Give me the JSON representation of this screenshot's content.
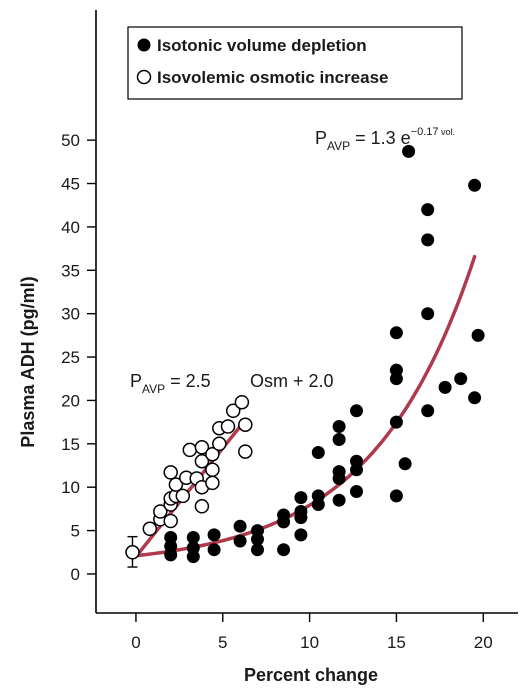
{
  "chart_data": {
    "type": "scatter",
    "title": "",
    "xlabel": "Percent change",
    "ylabel": "Plasma ADH (pg/ml)",
    "xlim": [
      -2.3,
      22
    ],
    "ylim": [
      -4.5,
      65
    ],
    "xticks": [
      0,
      5,
      10,
      15,
      20
    ],
    "yticks": [
      0,
      5,
      10,
      15,
      20,
      25,
      30,
      35,
      40,
      45,
      50
    ],
    "grid": false,
    "legend_position": "top-left",
    "series": [
      {
        "name": "Isotonic volume depletion",
        "marker": "filled-circle",
        "color": "#000000",
        "points": [
          [
            2,
            2.2
          ],
          [
            2,
            3.2
          ],
          [
            2,
            4.2
          ],
          [
            3.3,
            2.0
          ],
          [
            3.3,
            3.0
          ],
          [
            3.3,
            4.2
          ],
          [
            4.5,
            2.8
          ],
          [
            4.5,
            4.5
          ],
          [
            6,
            3.8
          ],
          [
            6,
            5.5
          ],
          [
            7,
            2.8
          ],
          [
            7,
            4.0
          ],
          [
            7,
            5.0
          ],
          [
            8.5,
            2.8
          ],
          [
            8.5,
            6.0
          ],
          [
            8.5,
            6.8
          ],
          [
            9.5,
            4.5
          ],
          [
            9.5,
            6.5
          ],
          [
            9.5,
            7.2
          ],
          [
            9.5,
            8.8
          ],
          [
            10.5,
            8.0
          ],
          [
            10.5,
            9.0
          ],
          [
            10.5,
            14.0
          ],
          [
            11.7,
            8.5
          ],
          [
            11.7,
            11.0
          ],
          [
            11.7,
            11.8
          ],
          [
            11.7,
            15.5
          ],
          [
            11.7,
            17.0
          ],
          [
            12.7,
            9.5
          ],
          [
            12.7,
            12.0
          ],
          [
            12.7,
            13.0
          ],
          [
            12.7,
            18.8
          ],
          [
            15,
            9.0
          ],
          [
            15,
            17.5
          ],
          [
            15,
            22.5
          ],
          [
            15,
            23.5
          ],
          [
            15,
            27.8
          ],
          [
            15.5,
            12.7
          ],
          [
            15.7,
            48.7
          ],
          [
            16.8,
            18.8
          ],
          [
            16.8,
            30.0
          ],
          [
            16.8,
            38.5
          ],
          [
            16.8,
            42.0
          ],
          [
            17.8,
            21.5
          ],
          [
            18.7,
            22.5
          ],
          [
            19.5,
            20.3
          ],
          [
            19.5,
            44.8
          ],
          [
            19.7,
            27.5
          ]
        ]
      },
      {
        "name": "Isovolemic osmotic increase",
        "marker": "open-circle",
        "color": "#000000",
        "points": [
          [
            -0.2,
            2.5
          ],
          [
            0.8,
            5.2
          ],
          [
            1.4,
            6.3
          ],
          [
            1.4,
            7.2
          ],
          [
            2,
            6.1
          ],
          [
            2,
            8.0
          ],
          [
            2,
            8.7
          ],
          [
            2,
            11.7
          ],
          [
            2.3,
            9.0
          ],
          [
            2.3,
            10.3
          ],
          [
            2.7,
            9.0
          ],
          [
            2.9,
            11.1
          ],
          [
            3.1,
            14.3
          ],
          [
            3.5,
            11.0
          ],
          [
            3.8,
            7.8
          ],
          [
            3.8,
            10.0
          ],
          [
            3.8,
            13.0
          ],
          [
            3.8,
            14.6
          ],
          [
            4.4,
            10.5
          ],
          [
            4.4,
            12.0
          ],
          [
            4.4,
            13.8
          ],
          [
            4.8,
            15.0
          ],
          [
            4.8,
            16.8
          ],
          [
            5.3,
            17.0
          ],
          [
            5.6,
            18.8
          ],
          [
            6.1,
            19.8
          ],
          [
            6.3,
            14.1
          ],
          [
            6.3,
            17.2
          ]
        ]
      }
    ],
    "error_bar": {
      "x": -0.2,
      "y": 2.5,
      "low": 0.8,
      "high": 4.3
    },
    "fit_curves": [
      {
        "label": "Isotonic volume depletion fit",
        "type": "exponential",
        "color": "#b0394b",
        "x_range": [
          0,
          19.5
        ],
        "a": 1.3,
        "b": 0.17
      },
      {
        "label": "Isovolemic osmotic increase fit",
        "type": "linear",
        "color": "#b0394b",
        "x_range": [
          0,
          6.2
        ],
        "slope": 2.5,
        "intercept": 2.0
      }
    ],
    "annotations": {
      "exp_formula": {
        "p": "P",
        "sub": "AVP",
        "eq": " = 1.3 e",
        "sup_main": "−0.17",
        "sup_small": " vol."
      },
      "lin_formula": {
        "p": "P",
        "sub": "AVP",
        "eq": " = 2.5",
        "rest": "Osm + 2.0"
      }
    }
  }
}
